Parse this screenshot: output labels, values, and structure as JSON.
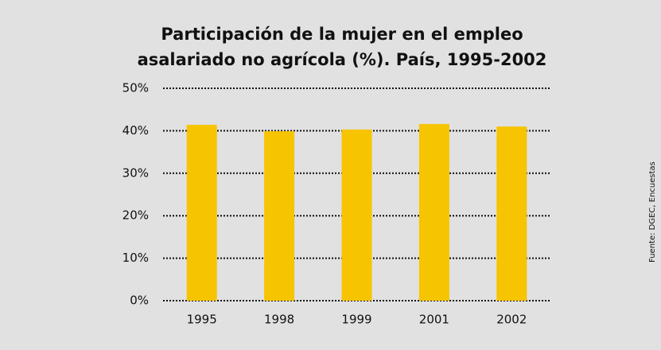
{
  "chart_data": {
    "type": "bar",
    "title": [
      "Participación de la mujer en el empleo",
      "asalariado no agrícola (%). País, 1995-2002"
    ],
    "categories": [
      "1995",
      "1998",
      "1999",
      "2001",
      "2002"
    ],
    "values": [
      41.4,
      39.9,
      40.3,
      41.6,
      41.0
    ],
    "color": "#f6c400",
    "ylim": [
      0,
      50
    ],
    "yticks": [
      {
        "value": 0,
        "label": "0%"
      },
      {
        "value": 10,
        "label": "10%"
      },
      {
        "value": 20,
        "label": "20%"
      },
      {
        "value": 30,
        "label": "30%"
      },
      {
        "value": 40,
        "label": "40%"
      },
      {
        "value": 50,
        "label": "50%"
      }
    ],
    "grid": true,
    "source": "Fuente: DGEC, Encuestas"
  }
}
